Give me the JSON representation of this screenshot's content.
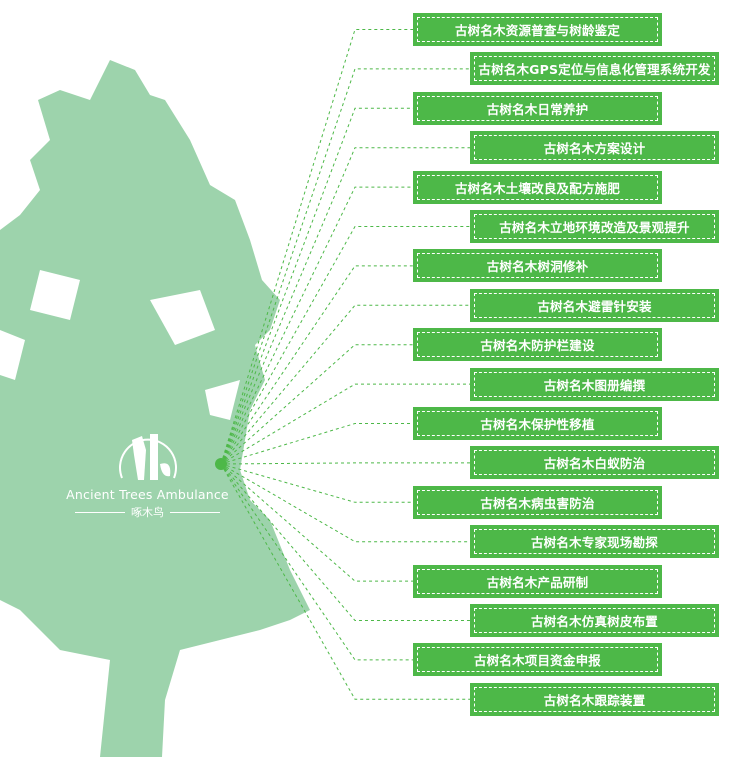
{
  "colors": {
    "box": "#4db848",
    "tree": "#9dd3ac",
    "line": "#4db848"
  },
  "logo": {
    "english": "Ancient Trees Ambulance",
    "chinese": "啄木鸟",
    "icon": "woodpecker-logo-icon"
  },
  "services": [
    "古树名木资源普查与树龄鉴定",
    "古树名木GPS定位与信息化管理系统开发",
    "古树名木日常养护",
    "古树名木方案设计",
    "古树名木土壤改良及配方施肥",
    "古树名木立地环境改造及景观提升",
    "古树名木树洞修补",
    "古树名木避雷针安装",
    "古树名木防护栏建设",
    "古树名木图册编撰",
    "古树名木保护性移植",
    "古树名木白蚁防治",
    "古树名木病虫害防治",
    "古树名木专家现场勘探",
    "古树名木产品研制",
    "古树名木仿真树皮布置",
    "古树名木项目资金申报",
    "古树名木跟踪装置"
  ]
}
